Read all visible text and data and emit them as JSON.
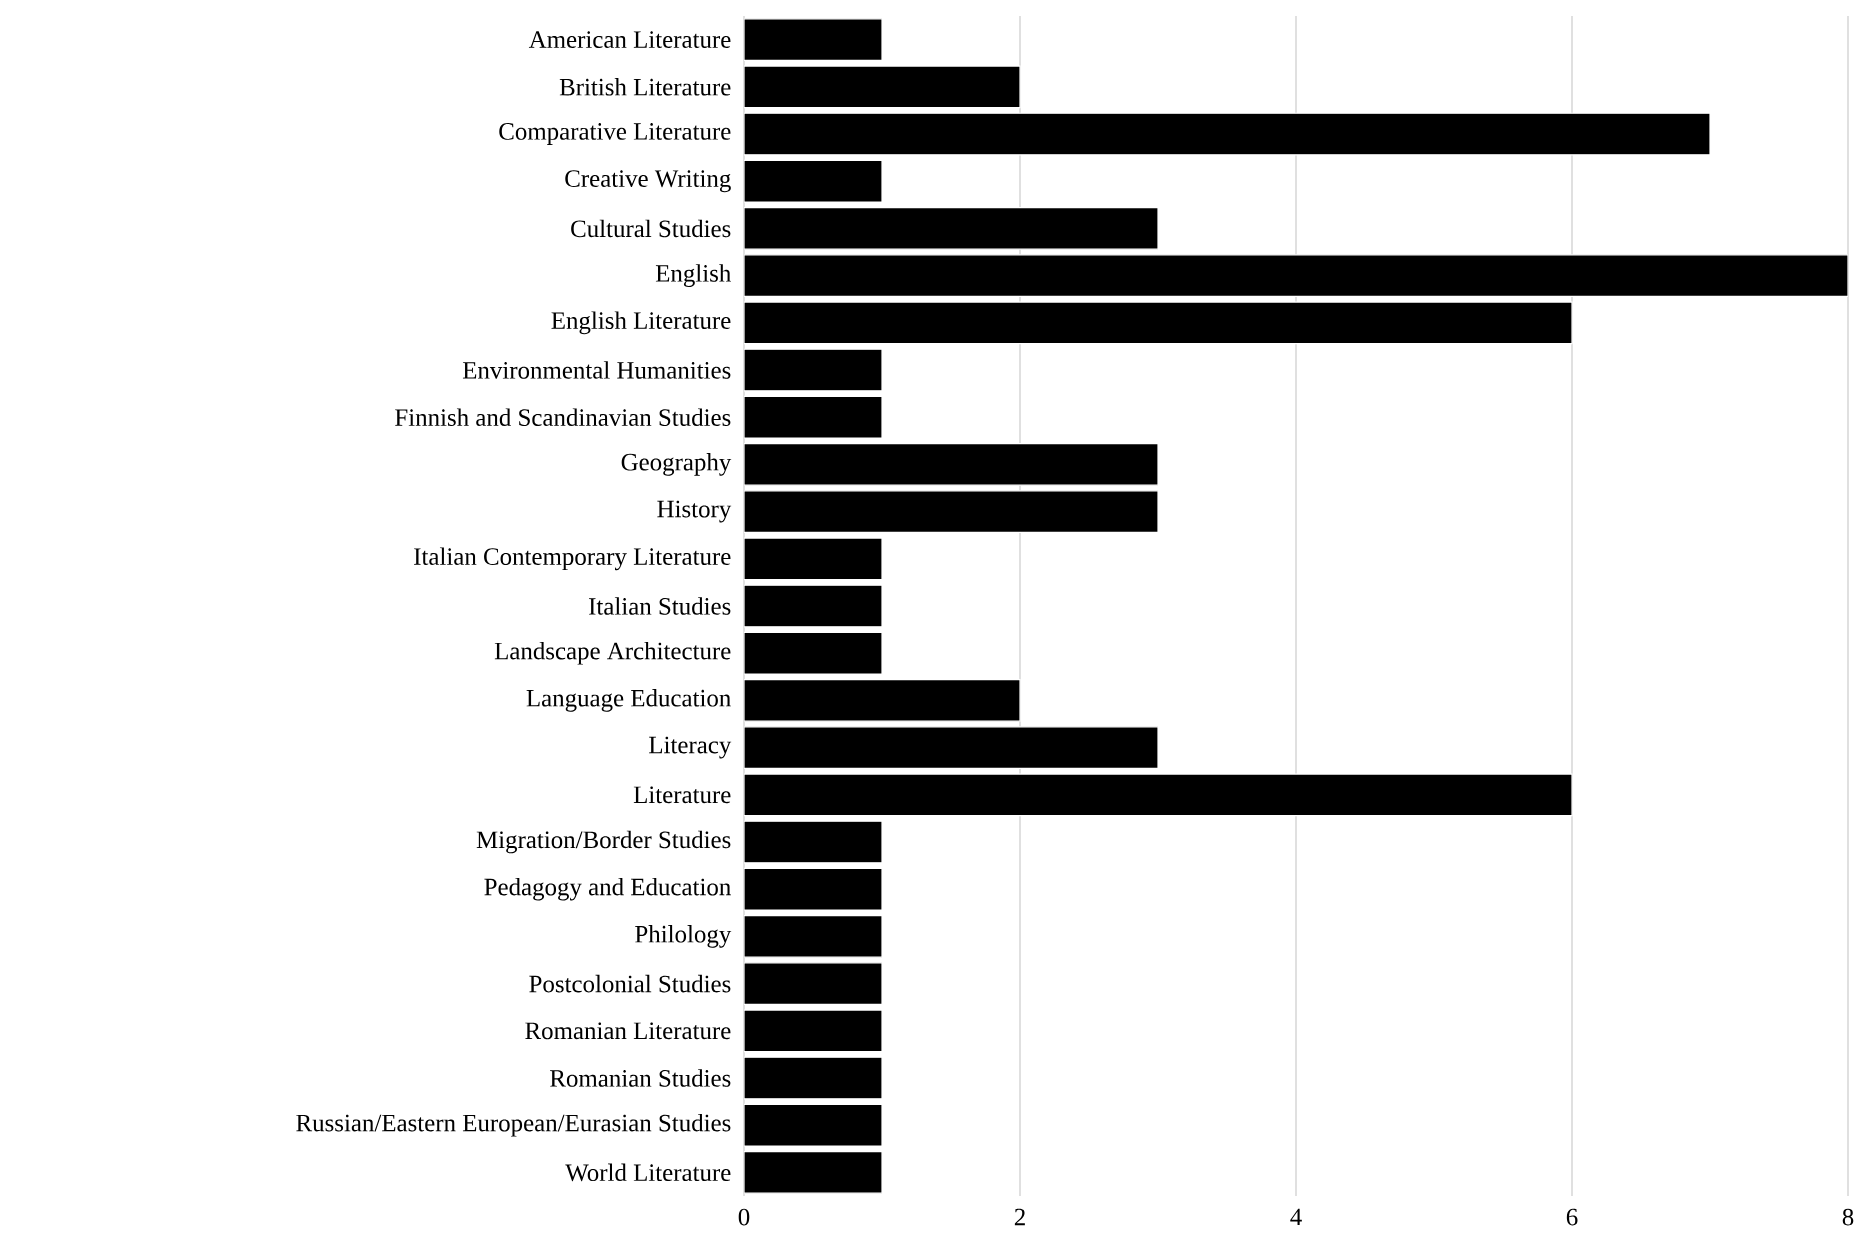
{
  "chart_data": {
    "type": "bar",
    "orientation": "horizontal",
    "categories": [
      "American Literature",
      "British Literature",
      "Comparative Literature",
      "Creative Writing",
      "Cultural Studies",
      "English",
      "English Literature",
      "Environmental Humanities",
      "Finnish and Scandinavian Studies",
      "Geography",
      "History",
      "Italian Contemporary Literature",
      "Italian Studies",
      "Landscape Architecture",
      "Language Education",
      "Literacy",
      "Literature",
      "Migration/Border Studies",
      "Pedagogy and Education",
      "Philology",
      "Postcolonial Studies",
      "Romanian Literature",
      "Romanian Studies",
      "Russian/Eastern European/Eurasian Studies",
      "World Literature"
    ],
    "values": [
      1,
      2,
      7,
      1,
      3,
      8,
      6,
      1,
      1,
      3,
      3,
      1,
      1,
      1,
      2,
      3,
      6,
      1,
      1,
      1,
      1,
      1,
      1,
      1,
      1
    ],
    "color": "#000000",
    "xlim": [
      0,
      8
    ],
    "xticks": [
      0,
      2,
      4,
      6,
      8
    ],
    "grid": "x"
  }
}
